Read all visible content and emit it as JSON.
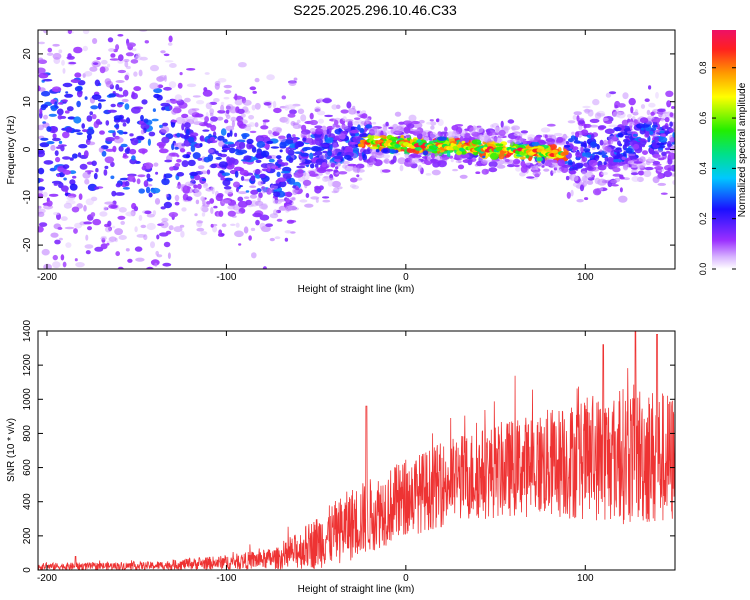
{
  "title": "S225.2025.296.10.46.C33",
  "colors": {
    "trace": "#ee3333",
    "axis": "#000000",
    "background": "#ffffff"
  },
  "chart_data": [
    {
      "type": "heatmap",
      "xlabel": "Height of straight line (km)",
      "ylabel": "Frequency (Hz)",
      "xlim": [
        -205,
        150
      ],
      "ylim": [
        -25,
        25
      ],
      "xticks": [
        -200,
        -100,
        0,
        100
      ],
      "yticks": [
        -20,
        -10,
        0,
        10,
        20
      ],
      "colorbar": {
        "label": "Normalized spectral amplitude",
        "range": [
          0,
          0.95
        ],
        "ticks": [
          "0.0",
          "0.2",
          "0.4",
          "0.6",
          "0.8"
        ],
        "tick_values": [
          0,
          0.2,
          0.4,
          0.6,
          0.8
        ]
      },
      "ridge": [
        {
          "x": -205,
          "y": 4
        },
        {
          "x": -150,
          "y": 1
        },
        {
          "x": -100,
          "y": -2
        },
        {
          "x": -70,
          "y": -4
        },
        {
          "x": -50,
          "y": 0
        },
        {
          "x": -20,
          "y": 1.5
        },
        {
          "x": 0,
          "y": 1
        },
        {
          "x": 50,
          "y": 0
        },
        {
          "x": 90,
          "y": -1
        },
        {
          "x": 120,
          "y": 1
        },
        {
          "x": 150,
          "y": 3
        }
      ]
    },
    {
      "type": "line",
      "xlabel": "Height of straight line (km)",
      "ylabel": "SNR (10 * v/v)",
      "xlim": [
        -205,
        150
      ],
      "ylim": [
        0,
        1400
      ],
      "xticks": [
        -200,
        -100,
        0,
        100
      ],
      "yticks": [
        0,
        200,
        400,
        600,
        800,
        1000,
        1200,
        1400
      ],
      "envelope": [
        {
          "x": -205,
          "mean": 20,
          "amp": 35
        },
        {
          "x": -140,
          "mean": 25,
          "amp": 40
        },
        {
          "x": -100,
          "mean": 45,
          "amp": 70
        },
        {
          "x": -70,
          "mean": 70,
          "amp": 110
        },
        {
          "x": -50,
          "mean": 160,
          "amp": 260
        },
        {
          "x": -30,
          "mean": 270,
          "amp": 360
        },
        {
          "x": 0,
          "mean": 420,
          "amp": 380
        },
        {
          "x": 30,
          "mean": 540,
          "amp": 430
        },
        {
          "x": 60,
          "mean": 600,
          "amp": 480
        },
        {
          "x": 100,
          "mean": 650,
          "amp": 600
        },
        {
          "x": 130,
          "mean": 680,
          "amp": 700
        },
        {
          "x": 150,
          "mean": 640,
          "amp": 650
        }
      ],
      "peaks": [
        {
          "x": -184,
          "y": 80
        },
        {
          "x": -22,
          "y": 960
        },
        {
          "x": 110,
          "y": 1320
        },
        {
          "x": 128,
          "y": 1400
        },
        {
          "x": 140,
          "y": 1380
        }
      ]
    }
  ]
}
